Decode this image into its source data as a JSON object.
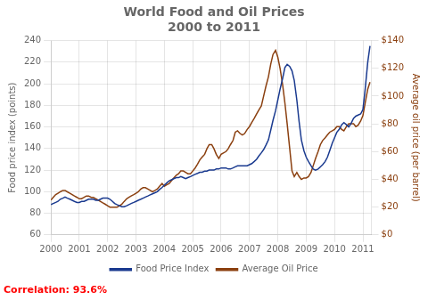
{
  "chart_data": {
    "type": "line",
    "title": "World Food and Oil Prices",
    "subtitle": "2000 to 2011",
    "ylabel": "Food price index (points)",
    "y2label": "Average oil price (per barrel)",
    "annotation": "Correlation: 93.6%",
    "grid": true,
    "legend": "bottom",
    "xlim": [
      2000,
      2011.3
    ],
    "xticks": [
      2000,
      2001,
      2002,
      2003,
      2004,
      2005,
      2006,
      2007,
      2008,
      2009,
      2010,
      2011
    ],
    "ylim": [
      60,
      240
    ],
    "yticks": [
      60,
      80,
      100,
      120,
      140,
      160,
      180,
      200,
      220,
      240
    ],
    "y2lim": [
      0,
      140
    ],
    "y2ticks": [
      {
        "value": 0,
        "label": "$0"
      },
      {
        "value": 20,
        "label": "$20"
      },
      {
        "value": 40,
        "label": "$40"
      },
      {
        "value": 60,
        "label": "$60"
      },
      {
        "value": 80,
        "label": "$80"
      },
      {
        "value": 100,
        "label": "$100"
      },
      {
        "value": 120,
        "label": "$120"
      },
      {
        "value": 140,
        "label": "$140"
      }
    ],
    "x": [
      2000.0,
      2000.08,
      2000.17,
      2000.25,
      2000.33,
      2000.42,
      2000.5,
      2000.58,
      2000.67,
      2000.75,
      2000.83,
      2000.92,
      2001.0,
      2001.08,
      2001.17,
      2001.25,
      2001.33,
      2001.42,
      2001.5,
      2001.58,
      2001.67,
      2001.75,
      2001.83,
      2001.92,
      2002.0,
      2002.08,
      2002.17,
      2002.25,
      2002.33,
      2002.42,
      2002.5,
      2002.58,
      2002.67,
      2002.75,
      2002.83,
      2002.92,
      2003.0,
      2003.08,
      2003.17,
      2003.25,
      2003.33,
      2003.42,
      2003.5,
      2003.58,
      2003.67,
      2003.75,
      2003.83,
      2003.92,
      2004.0,
      2004.08,
      2004.17,
      2004.25,
      2004.33,
      2004.42,
      2004.5,
      2004.58,
      2004.67,
      2004.75,
      2004.83,
      2004.92,
      2005.0,
      2005.08,
      2005.17,
      2005.25,
      2005.33,
      2005.42,
      2005.5,
      2005.58,
      2005.67,
      2005.75,
      2005.83,
      2005.92,
      2006.0,
      2006.08,
      2006.17,
      2006.25,
      2006.33,
      2006.42,
      2006.5,
      2006.58,
      2006.67,
      2006.75,
      2006.83,
      2006.92,
      2007.0,
      2007.08,
      2007.17,
      2007.25,
      2007.33,
      2007.42,
      2007.5,
      2007.58,
      2007.67,
      2007.75,
      2007.83,
      2007.92,
      2008.0,
      2008.08,
      2008.17,
      2008.25,
      2008.33,
      2008.42,
      2008.5,
      2008.58,
      2008.67,
      2008.75,
      2008.83,
      2008.92,
      2009.0,
      2009.08,
      2009.17,
      2009.25,
      2009.33,
      2009.42,
      2009.5,
      2009.58,
      2009.67,
      2009.75,
      2009.83,
      2009.92,
      2010.0,
      2010.08,
      2010.17,
      2010.25,
      2010.33,
      2010.42,
      2010.5,
      2010.58,
      2010.67,
      2010.75,
      2010.83,
      2010.92,
      2011.0,
      2011.08,
      2011.17,
      2011.25
    ],
    "series": [
      {
        "name": "Food Price Index",
        "color": "#1a3a8f",
        "values": [
          88,
          89,
          90,
          91,
          93,
          94,
          95,
          94,
          93,
          92,
          91,
          90,
          90,
          91,
          91,
          92,
          93,
          93,
          93,
          92,
          92,
          93,
          94,
          94,
          94,
          93,
          91,
          89,
          88,
          87,
          86,
          86,
          87,
          88,
          89,
          90,
          91,
          92,
          93,
          94,
          95,
          96,
          97,
          98,
          99,
          100,
          102,
          104,
          106,
          108,
          110,
          111,
          112,
          113,
          113,
          114,
          113,
          112,
          113,
          114,
          115,
          116,
          117,
          118,
          118,
          119,
          119,
          120,
          120,
          120,
          121,
          121,
          122,
          122,
          122,
          121,
          121,
          122,
          123,
          124,
          124,
          124,
          124,
          124,
          125,
          126,
          128,
          130,
          133,
          136,
          139,
          143,
          148,
          157,
          166,
          175,
          185,
          195,
          205,
          215,
          218,
          216,
          212,
          203,
          185,
          165,
          148,
          138,
          132,
          128,
          124,
          121,
          120,
          121,
          123,
          125,
          128,
          132,
          138,
          145,
          150,
          155,
          158,
          162,
          164,
          162,
          160,
          163,
          168,
          170,
          171,
          172,
          176,
          195,
          220,
          235
        ]
      },
      {
        "name": "Average Oil Price",
        "color": "#8B4010",
        "axis": "y2",
        "values": [
          25,
          27,
          29,
          30,
          31,
          32,
          32,
          31,
          30,
          29,
          28,
          27,
          26,
          26,
          27,
          28,
          28,
          27,
          27,
          26,
          25,
          24,
          23,
          22,
          21,
          20,
          20,
          20,
          20,
          21,
          22,
          24,
          26,
          27,
          28,
          29,
          30,
          31,
          33,
          34,
          34,
          33,
          32,
          31,
          32,
          33,
          35,
          37,
          35,
          36,
          37,
          39,
          41,
          43,
          44,
          46,
          46,
          45,
          44,
          44,
          46,
          48,
          51,
          54,
          56,
          58,
          62,
          65,
          65,
          62,
          58,
          55,
          58,
          59,
          60,
          62,
          65,
          68,
          74,
          75,
          73,
          72,
          73,
          76,
          78,
          81,
          84,
          87,
          90,
          93,
          100,
          107,
          114,
          123,
          130,
          133,
          128,
          120,
          108,
          95,
          80,
          62,
          46,
          42,
          45,
          42,
          40,
          41,
          41,
          42,
          45,
          50,
          55,
          60,
          65,
          68,
          70,
          72,
          74,
          75,
          76,
          78,
          78,
          76,
          75,
          78,
          80,
          80,
          80,
          78,
          79,
          82,
          86,
          95,
          105,
          110
        ]
      }
    ]
  }
}
